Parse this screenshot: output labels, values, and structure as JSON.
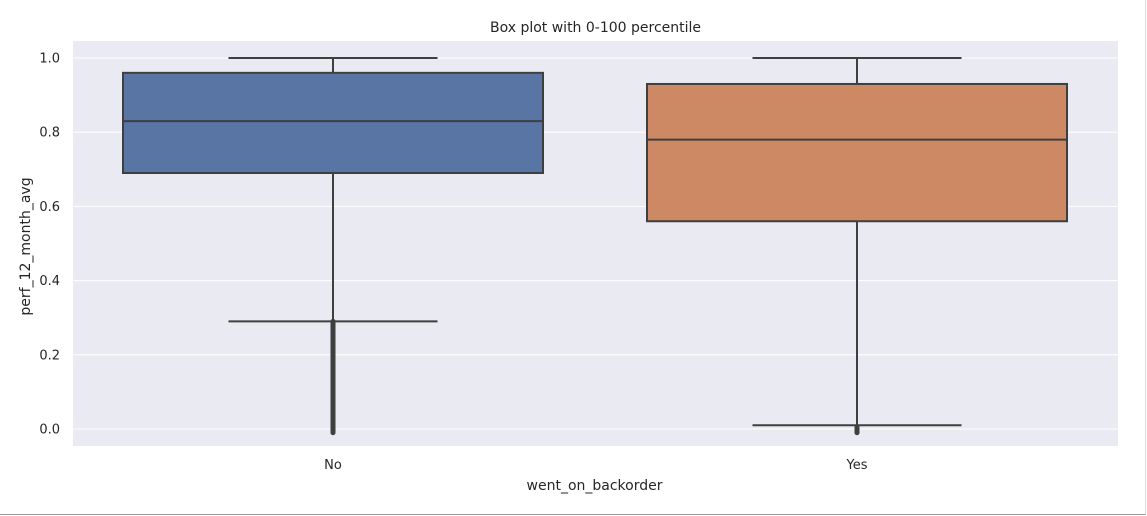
{
  "chart_data": {
    "type": "box",
    "title": "Box plot with 0-100 percentile",
    "xlabel": "went_on_backorder",
    "ylabel": "perf_12_month_avg",
    "ylim": [
      -0.045,
      1.045
    ],
    "yticks": [
      "0.0",
      "0.2",
      "0.4",
      "0.6",
      "0.8",
      "1.0"
    ],
    "grid": true,
    "categories": [
      "No",
      "Yes"
    ],
    "boxes": [
      {
        "category": "No",
        "color": "#5875a4",
        "whisker_low": 0.29,
        "q1": 0.69,
        "median": 0.83,
        "q3": 0.96,
        "whisker_high": 1.0,
        "outliers_range": [
          -0.01,
          0.29
        ]
      },
      {
        "category": "Yes",
        "color": "#cc8963",
        "whisker_low": 0.01,
        "q1": 0.56,
        "median": 0.78,
        "q3": 0.93,
        "whisker_high": 1.0,
        "outliers_range": [
          -0.01,
          0.005
        ]
      }
    ]
  },
  "colors": {
    "plot_background": "#eaeaf2",
    "grid": "#ffffff",
    "edge": "#3f3f3f"
  }
}
